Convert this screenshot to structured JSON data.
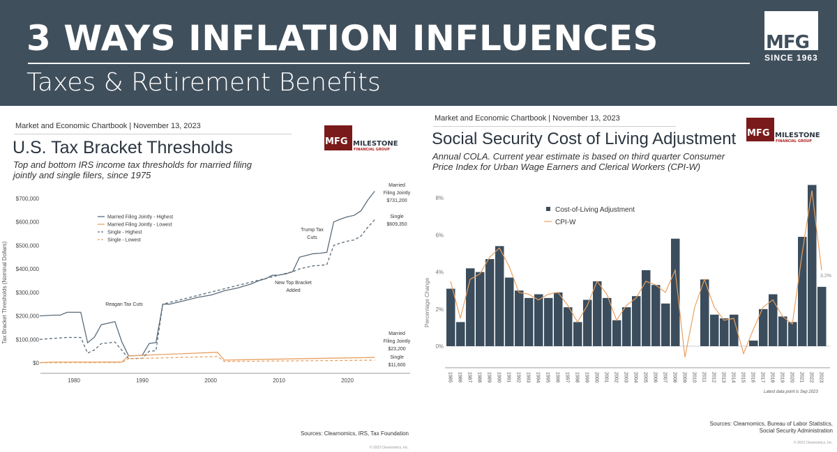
{
  "header": {
    "title": "3 WAYS INFLATION INFLUENCES",
    "subtitle": "Taxes & Retirement Benefits",
    "logo": {
      "mark": "MFG",
      "since": "SINCE 1963"
    }
  },
  "colors": {
    "header_bg": "#404f5c",
    "navy": "#3b4d5c",
    "orange": "#e8a060",
    "maroon": "#7a1a1a"
  },
  "milestone_logo": {
    "mark": "MFG",
    "name": "MILESTONE",
    "sub": "FINANCIAL GROUP"
  },
  "chart_data": [
    {
      "type": "line",
      "chartbook": "Market and Economic Chartbook | November 13, 2023",
      "title": "U.S. Tax Bracket Thresholds",
      "subtitle": "Top and bottom IRS income tax thresholds for married filing jointly and single filers, since 1975",
      "ylabel": "Tax Bracket Thresholds (Nominal Dollars)",
      "xlim": [
        1975,
        2027
      ],
      "ylim": [
        0,
        700000
      ],
      "xticks": [
        "1980",
        "1990",
        "2000",
        "2010",
        "2020"
      ],
      "yticks": [
        "$0",
        "$100,000",
        "$200,000",
        "$300,000",
        "$400,000",
        "$500,000",
        "$600,000",
        "$700,000"
      ],
      "legend_position": "upper-left",
      "series": [
        {
          "name": "Married Filing Jointly - Highest",
          "style": "solid",
          "color": "#5a6b7a",
          "x": [
            1975,
            1977,
            1978,
            1979,
            1981,
            1982,
            1983,
            1984,
            1986,
            1987,
            1988,
            1990,
            1991,
            1992,
            1993,
            1994,
            1996,
            1998,
            2000,
            2001,
            2002,
            2004,
            2006,
            2007,
            2008,
            2009,
            2010,
            2011,
            2012,
            2013,
            2014,
            2015,
            2016,
            2017,
            2018,
            2019,
            2020,
            2021,
            2022,
            2023,
            2024
          ],
          "y": [
            200000,
            203200,
            203200,
            215400,
            215400,
            85600,
            109400,
            162400,
            175250,
            90000,
            29750,
            32450,
            82150,
            86500,
            250000,
            250000,
            263750,
            278450,
            288350,
            297350,
            307050,
            319100,
            336550,
            349700,
            357700,
            372950,
            373650,
            379150,
            388350,
            450000,
            457600,
            464850,
            466950,
            470700,
            600000,
            612350,
            622050,
            628300,
            647850,
            693750,
            731200
          ]
        },
        {
          "name": "Married Filing Jointly - Lowest",
          "style": "solid",
          "color": "#e8a060",
          "x": [
            1975,
            1977,
            1986,
            1987,
            1988,
            2001,
            2002,
            2024
          ],
          "y": [
            1000,
            3200,
            3670,
            3000,
            29750,
            45200,
            12000,
            23200
          ]
        },
        {
          "name": "Single - Highest",
          "style": "dashed",
          "color": "#5a6b7a",
          "x": [
            1975,
            1979,
            1981,
            1982,
            1983,
            1984,
            1986,
            1987,
            1988,
            1990,
            1991,
            1992,
            1993,
            2012,
            2013,
            2014,
            2015,
            2016,
            2017,
            2018,
            2019,
            2020,
            2021,
            2022,
            2023,
            2024
          ],
          "y": [
            100000,
            108300,
            108300,
            41500,
            55300,
            81800,
            88270,
            54000,
            17850,
            19450,
            49300,
            51900,
            250000,
            388350,
            400000,
            406750,
            413200,
            415050,
            418400,
            500000,
            510300,
            518400,
            523600,
            539900,
            578125,
            609350
          ]
        },
        {
          "name": "Single - Lowest",
          "style": "dashed",
          "color": "#e8a060",
          "x": [
            1975,
            1987,
            1988,
            2001,
            2002,
            2024
          ],
          "y": [
            500,
            1800,
            17850,
            27050,
            6000,
            11600
          ]
        }
      ],
      "annotations": [
        {
          "text": "Reagan Tax Cuts"
        },
        {
          "text": "New Top Bracket Added"
        },
        {
          "text": "Trump Tax Cuts"
        },
        {
          "text": "Married Filing Jointly $731,200"
        },
        {
          "text": "Single $609,350"
        },
        {
          "text": "Married Filing Jointly $23,200"
        },
        {
          "text": "Single $11,600"
        }
      ],
      "sources": "Sources: Clearnomics, IRS, Tax Foundation",
      "copyright": "© 2023 Clearnomics, Inc."
    },
    {
      "type": "bar+line",
      "chartbook": "Market and Economic Chartbook | November 13, 2023",
      "title": "Social Security Cost of Living Adjustment",
      "subtitle": "Annual COLA. Current year estimate is based on third quarter Consumer Price Index for Urban Wage Earners and Clerical Workers (CPI-W)",
      "ylabel": "Percentage Change",
      "ylim": [
        -1,
        9
      ],
      "yticks": [
        "0%",
        "2%",
        "4%",
        "6%",
        "8%"
      ],
      "legend_position": "upper-left",
      "categories": [
        "1985",
        "1986",
        "1987",
        "1988",
        "1989",
        "1990",
        "1991",
        "1992",
        "1993",
        "1994",
        "1995",
        "1996",
        "1997",
        "1998",
        "1999",
        "2000",
        "2001",
        "2002",
        "2003",
        "2004",
        "2005",
        "2006",
        "2007",
        "2008",
        "2009",
        "2010",
        "2011",
        "2012",
        "2013",
        "2014",
        "2015",
        "2016",
        "2017",
        "2018",
        "2019",
        "2020",
        "2021",
        "2022",
        "2023"
      ],
      "series": [
        {
          "name": "Cost-of-Living Adjustment",
          "type": "bar",
          "color": "#3b4d5c",
          "values": [
            3.1,
            1.3,
            4.2,
            4.0,
            4.7,
            5.4,
            3.7,
            3.0,
            2.6,
            2.8,
            2.6,
            2.9,
            2.1,
            1.3,
            2.5,
            3.5,
            2.6,
            1.4,
            2.1,
            2.7,
            4.1,
            3.3,
            2.3,
            5.8,
            0,
            0,
            3.6,
            1.7,
            1.5,
            1.7,
            0,
            0.3,
            2.0,
            2.8,
            1.6,
            1.3,
            5.9,
            8.7,
            3.2
          ]
        },
        {
          "name": "CPI-W",
          "type": "line",
          "color": "#e8a060",
          "values": [
            3.5,
            1.5,
            3.6,
            3.9,
            4.8,
            5.3,
            4.3,
            2.9,
            2.8,
            2.5,
            2.8,
            2.9,
            2.2,
            1.3,
            2.2,
            3.5,
            2.8,
            1.4,
            2.2,
            2.6,
            3.5,
            3.3,
            2.9,
            4.1,
            -0.6,
            2.1,
            3.6,
            2.1,
            1.4,
            1.5,
            -0.4,
            0.9,
            2.1,
            2.5,
            1.6,
            1.2,
            5.0,
            8.4,
            4.1
          ]
        }
      ],
      "data_label": "3.2%",
      "note": "Latest data point is Sep 2023",
      "sources": "Sources: Clearnomics, Bureau of Labor Statistics, Social Security Administration",
      "copyright": "© 2023 Clearnomics, Inc."
    }
  ]
}
